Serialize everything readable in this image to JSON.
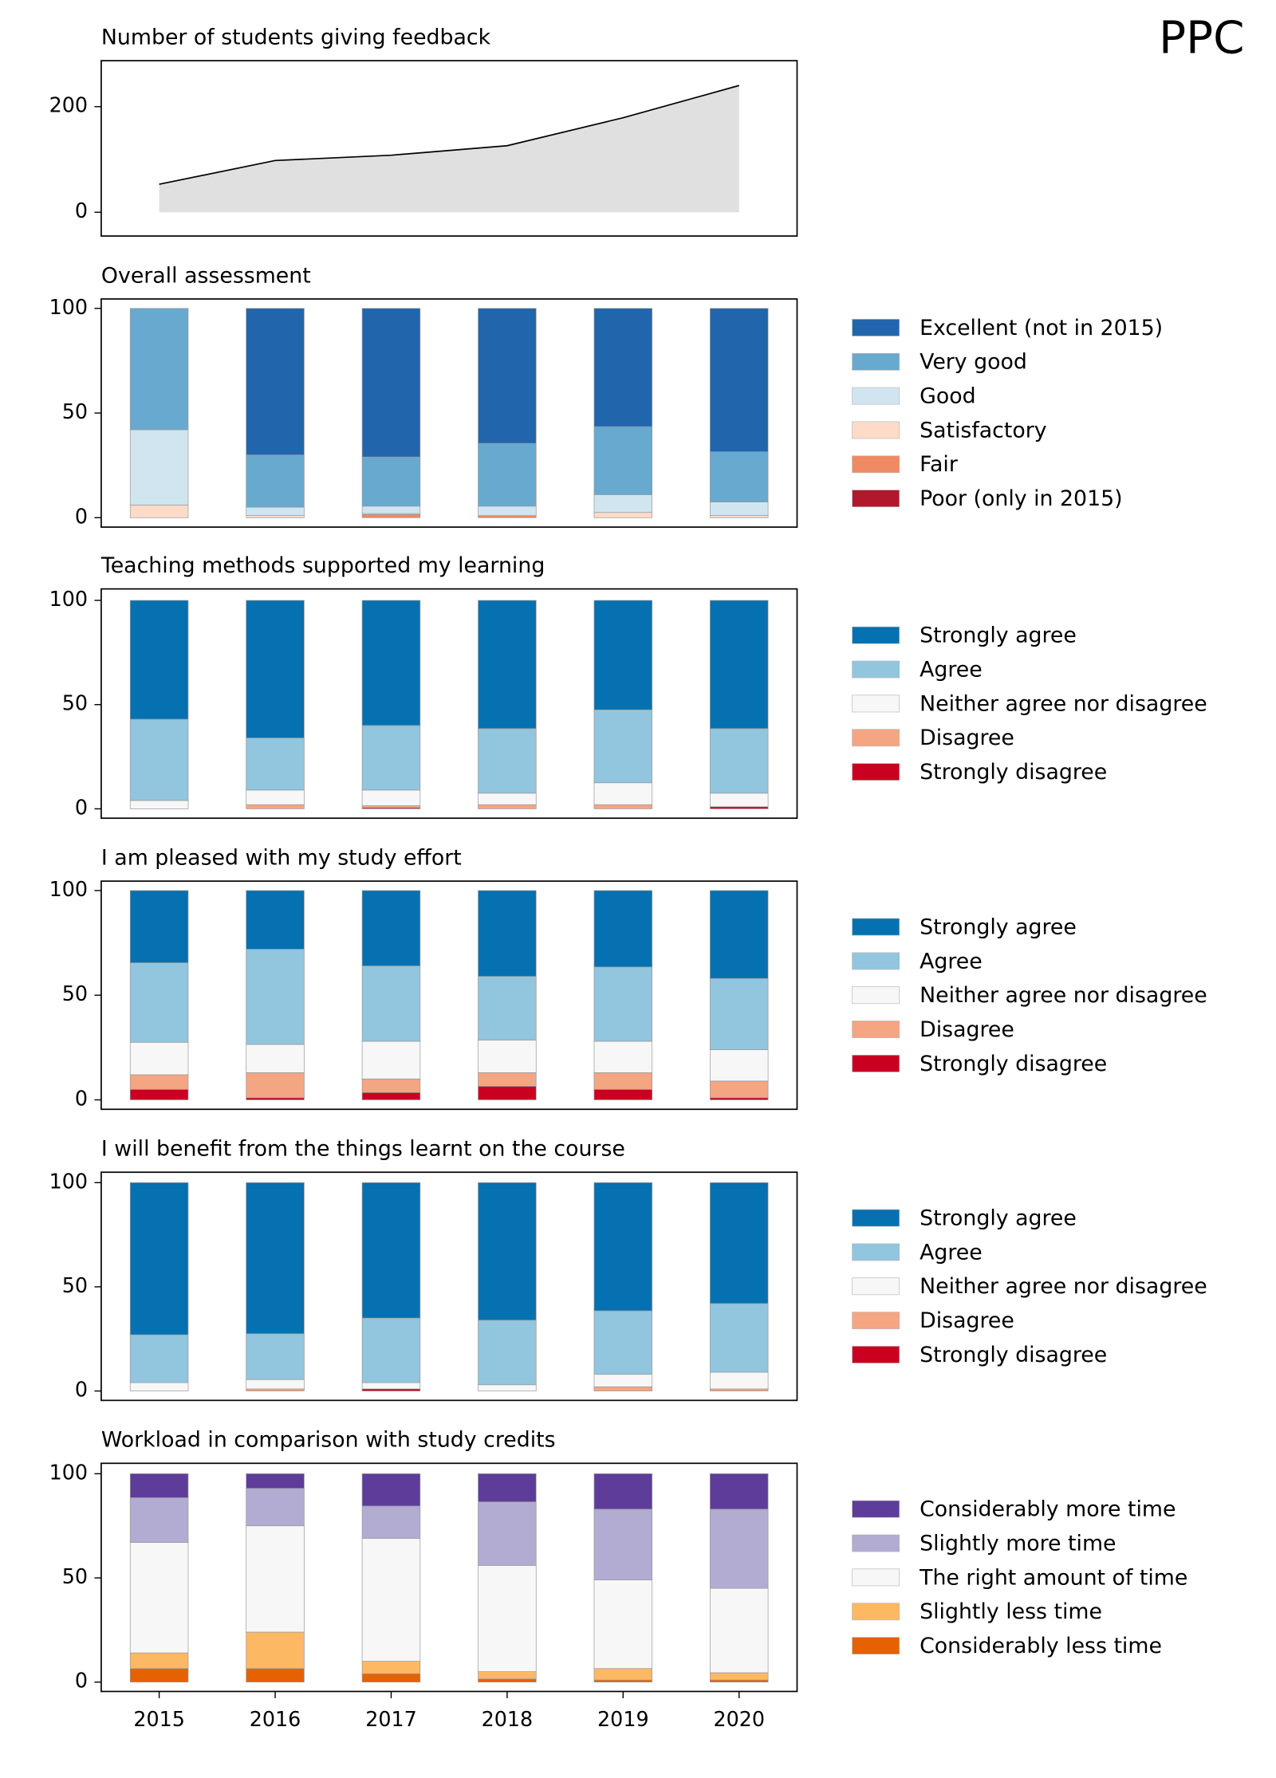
{
  "title": "PPC",
  "chart_data": [
    {
      "type": "area",
      "title": "Number of students giving feedback",
      "values": [
        53,
        98,
        108,
        126,
        179,
        240
      ],
      "color": "#e0e0e0",
      "line_color": "#000000",
      "ylim": [
        -45,
        287
      ],
      "yticks": [
        0,
        200
      ]
    },
    {
      "type": "bar",
      "stacked": true,
      "title": "Overall assessment",
      "ylim": [
        -4.5,
        104.5
      ],
      "yticks": [
        0,
        50,
        100
      ],
      "series": [
        {
          "name": "Excellent (not in 2015)",
          "color": "#2166ac",
          "values": [
            0,
            70,
            71,
            64.5,
            56.5,
            68.5
          ]
        },
        {
          "name": "Very good",
          "color": "#67a9cf",
          "values": [
            58,
            25,
            23.5,
            30,
            32.5,
            24
          ]
        },
        {
          "name": "Good",
          "color": "#d1e5f0",
          "values": [
            36,
            4,
            3.5,
            4.5,
            8.5,
            6.5
          ]
        },
        {
          "name": "Satisfactory",
          "color": "#fddbc7",
          "values": [
            6,
            1,
            0.5,
            0,
            2.5,
            1
          ]
        },
        {
          "name": "Fair",
          "color": "#ef8a62",
          "values": [
            0,
            0,
            1.5,
            1,
            0,
            0
          ]
        },
        {
          "name": "Poor (only in 2015)",
          "color": "#b2182b",
          "values": [
            0,
            0,
            0,
            0,
            0,
            0
          ]
        }
      ]
    },
    {
      "type": "bar",
      "stacked": true,
      "title": "Teaching methods supported my learning",
      "ylim": [
        -4.5,
        105.5
      ],
      "yticks": [
        0,
        50,
        100
      ],
      "series": [
        {
          "name": "Strongly agree",
          "color": "#0571b0",
          "values": [
            57,
            66,
            60,
            61.5,
            52.5,
            61.5
          ]
        },
        {
          "name": "Agree",
          "color": "#92c5de",
          "values": [
            39,
            25,
            31,
            31,
            35,
            31
          ]
        },
        {
          "name": "Neither agree nor disagree",
          "color": "#f7f7f7",
          "values": [
            4,
            7,
            7.5,
            5.5,
            10.5,
            6.5
          ]
        },
        {
          "name": "Disagree",
          "color": "#f4a582",
          "values": [
            0,
            2,
            1,
            2,
            2,
            0
          ]
        },
        {
          "name": "Strongly disagree",
          "color": "#ca0020",
          "values": [
            0,
            0,
            0.5,
            0,
            0,
            1
          ]
        }
      ]
    },
    {
      "type": "bar",
      "stacked": true,
      "title": "I am pleased with my study effort",
      "ylim": [
        -4.5,
        104.5
      ],
      "yticks": [
        0,
        50,
        100
      ],
      "series": [
        {
          "name": "Strongly agree",
          "color": "#0571b0",
          "values": [
            34.5,
            28,
            36,
            41,
            36.5,
            42
          ]
        },
        {
          "name": "Agree",
          "color": "#92c5de",
          "values": [
            38,
            45.5,
            36,
            30.5,
            35.5,
            34
          ]
        },
        {
          "name": "Neither agree nor disagree",
          "color": "#f7f7f7",
          "values": [
            15.5,
            13.5,
            18,
            15.5,
            15,
            15
          ]
        },
        {
          "name": "Disagree",
          "color": "#f4a582",
          "values": [
            7,
            12,
            6.5,
            6.5,
            8,
            8
          ]
        },
        {
          "name": "Strongly disagree",
          "color": "#ca0020",
          "values": [
            5,
            1,
            3.5,
            6.5,
            5,
            1
          ]
        }
      ]
    },
    {
      "type": "bar",
      "stacked": true,
      "title": "I will benefit from the things learnt on the course",
      "ylim": [
        -4.5,
        105
      ],
      "yticks": [
        0,
        50,
        100
      ],
      "series": [
        {
          "name": "Strongly agree",
          "color": "#0571b0",
          "values": [
            73,
            72.5,
            65,
            66,
            61.5,
            58
          ]
        },
        {
          "name": "Agree",
          "color": "#92c5de",
          "values": [
            23,
            22,
            31,
            31,
            30.5,
            33
          ]
        },
        {
          "name": "Neither agree nor disagree",
          "color": "#f7f7f7",
          "values": [
            4,
            4.5,
            3,
            3,
            6,
            8
          ]
        },
        {
          "name": "Disagree",
          "color": "#f4a582",
          "values": [
            0,
            1,
            0,
            0,
            2,
            1
          ]
        },
        {
          "name": "Strongly disagree",
          "color": "#ca0020",
          "values": [
            0,
            0,
            1,
            0,
            0,
            0
          ]
        }
      ]
    },
    {
      "type": "bar",
      "stacked": true,
      "title": "Workload in comparison with study credits",
      "categories": [
        "2015",
        "2016",
        "2017",
        "2018",
        "2019",
        "2020"
      ],
      "ylim": [
        -4.5,
        105
      ],
      "yticks": [
        0,
        50,
        100
      ],
      "series": [
        {
          "name": "Considerably more time",
          "color": "#5e3c99",
          "values": [
            11.5,
            7,
            15.5,
            13.5,
            17,
            17
          ]
        },
        {
          "name": "Slightly more time",
          "color": "#b2abd2",
          "values": [
            21.5,
            18,
            15.5,
            30.5,
            34,
            38
          ]
        },
        {
          "name": "The right amount of time",
          "color": "#f7f7f7",
          "values": [
            53,
            51,
            59,
            51,
            42.5,
            40.5
          ]
        },
        {
          "name": "Slightly less time",
          "color": "#fdb863",
          "values": [
            7.5,
            17.5,
            6,
            3.5,
            5.5,
            3.5
          ]
        },
        {
          "name": "Considerably less time",
          "color": "#e66101",
          "values": [
            6.5,
            6.5,
            4,
            1.5,
            1,
            1
          ]
        }
      ]
    }
  ]
}
